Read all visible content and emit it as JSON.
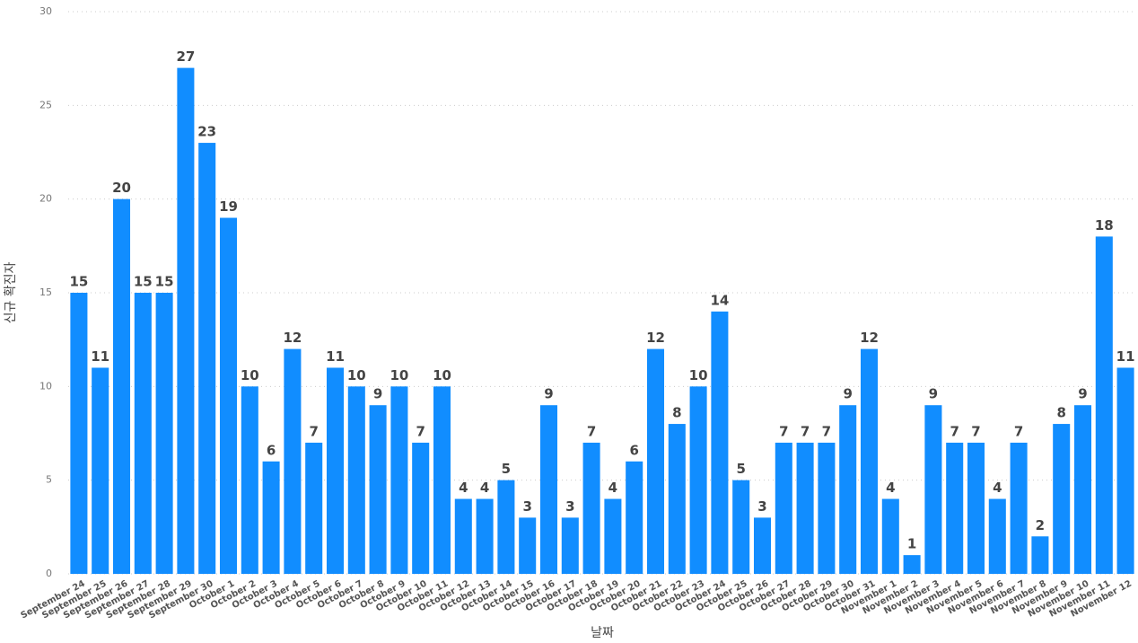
{
  "chart_data": {
    "type": "bar",
    "x_label": "날짜",
    "y_label": "신규 확진자",
    "categories": [
      "September 24",
      "September 25",
      "September 26",
      "September 27",
      "September 28",
      "September 29",
      "September 30",
      "October 1",
      "October 2",
      "October 3",
      "October 4",
      "October 5",
      "October 6",
      "October 7",
      "October 8",
      "October 9",
      "October 10",
      "October 11",
      "October 12",
      "October 13",
      "October 14",
      "October 15",
      "October 16",
      "October 17",
      "October 18",
      "October 19",
      "October 20",
      "October 21",
      "October 22",
      "October 23",
      "October 24",
      "October 25",
      "October 26",
      "October 27",
      "October 28",
      "October 29",
      "October 30",
      "October 31",
      "November 1",
      "November 2",
      "November 3",
      "November 4",
      "November 5",
      "November 6",
      "November 7",
      "November 8",
      "November 9",
      "November 10",
      "November 11",
      "November 12"
    ],
    "values": [
      15,
      11,
      20,
      15,
      15,
      27,
      23,
      19,
      10,
      6,
      12,
      7,
      11,
      10,
      9,
      10,
      7,
      10,
      4,
      4,
      5,
      3,
      9,
      3,
      7,
      4,
      6,
      12,
      8,
      10,
      14,
      5,
      3,
      7,
      7,
      7,
      9,
      12,
      4,
      1,
      9,
      7,
      7,
      4,
      7,
      2,
      8,
      9,
      18,
      11
    ],
    "color": "#118dff",
    "ylim": [
      0,
      30
    ],
    "yticks": [
      0,
      5,
      10,
      15,
      20,
      25,
      30
    ],
    "grid": true
  }
}
